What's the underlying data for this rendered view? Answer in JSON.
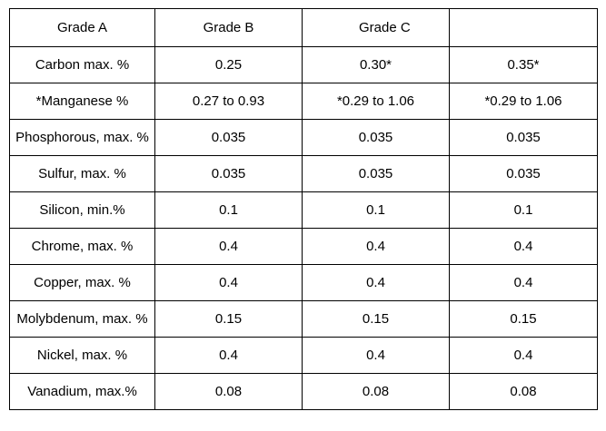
{
  "table": {
    "header": [
      "Grade A",
      "Grade B",
      "Grade C",
      ""
    ],
    "rows": [
      {
        "label": "Carbon max. %",
        "b": "0.25",
        "c": "0.30*",
        "d": "0.35*"
      },
      {
        "label": "*Manganese %",
        "b": "0.27 to 0.93",
        "c": "*0.29 to 1.06",
        "d": "*0.29 to 1.06"
      },
      {
        "label": "Phosphorous, max. %",
        "b": "0.035",
        "c": "0.035",
        "d": "0.035"
      },
      {
        "label": "Sulfur, max. %",
        "b": "0.035",
        "c": "0.035",
        "d": "0.035"
      },
      {
        "label": "Silicon, min.%",
        "b": "0.1",
        "c": "0.1",
        "d": "0.1"
      },
      {
        "label": "Chrome, max. %",
        "b": "0.4",
        "c": "0.4",
        "d": "0.4"
      },
      {
        "label": "Copper, max. %",
        "b": "0.4",
        "c": "0.4",
        "d": "0.4"
      },
      {
        "label": "Molybdenum, max. %",
        "b": "0.15",
        "c": "0.15",
        "d": "0.15"
      },
      {
        "label": "Nickel, max. %",
        "b": "0.4",
        "c": "0.4",
        "d": "0.4"
      },
      {
        "label": "Vanadium, max.%",
        "b": "0.08",
        "c": "0.08",
        "d": "0.08"
      }
    ]
  }
}
